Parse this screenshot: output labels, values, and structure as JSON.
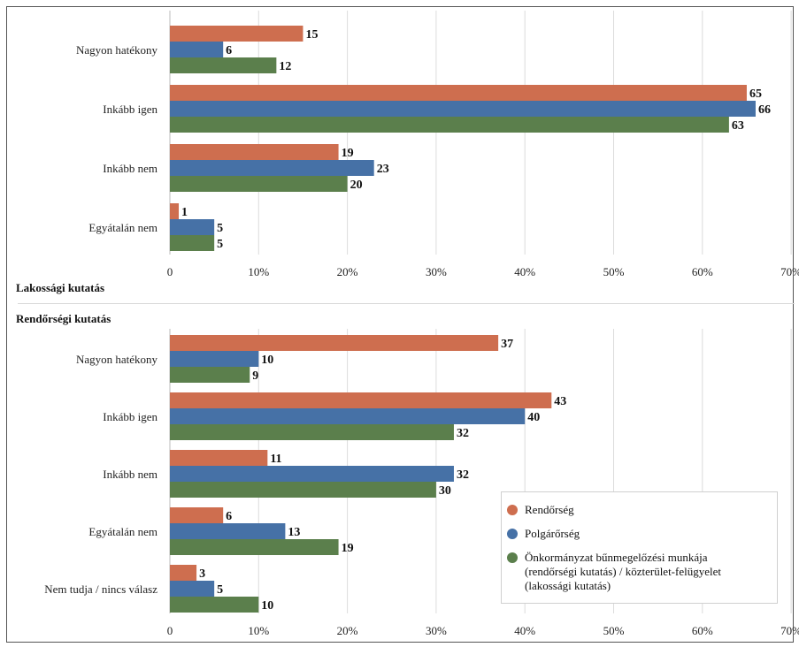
{
  "colors": {
    "rendorseg": "#CE6E4F",
    "polgarorseg": "#4671A6",
    "onkormanyzat": "#5B7F4C"
  },
  "legend": [
    {
      "label": "Rendőrség"
    },
    {
      "label": "Polgárőrség"
    },
    {
      "label": "Önkormányzat bűnmegelőzési munkája\n(rendőrségi kutatás) / közterület-felügyelet\n(lakossági kutatás)"
    }
  ],
  "chart_data": [
    {
      "type": "bar",
      "orientation": "horizontal",
      "title": "Lakossági kutatás",
      "categories": [
        "Nagyon hatékony",
        "Inkább igen",
        "Inkább nem",
        "Egyátalán nem"
      ],
      "series": [
        {
          "name": "Rendőrség",
          "values": [
            15,
            65,
            19,
            1
          ]
        },
        {
          "name": "Polgárőrség",
          "values": [
            6,
            66,
            23,
            5
          ]
        },
        {
          "name": "Önkormányzat bűnmegelőzési munkája (rendőrségi kutatás) / közterület-felügyelet (lakossági kutatás)",
          "values": [
            12,
            63,
            20,
            5
          ]
        }
      ],
      "xlim": [
        0,
        70
      ],
      "ticks": [
        "0",
        "10%",
        "20%",
        "30%",
        "40%",
        "50%",
        "60%",
        "70%"
      ],
      "grid": true,
      "legend": "none"
    },
    {
      "type": "bar",
      "orientation": "horizontal",
      "title": "Rendőrségi kutatás",
      "categories": [
        "Nagyon hatékony",
        "Inkább igen",
        "Inkább nem",
        "Egyátalán nem",
        "Nem tudja / nincs válasz"
      ],
      "series": [
        {
          "name": "Rendőrség",
          "values": [
            37,
            43,
            11,
            6,
            3
          ]
        },
        {
          "name": "Polgárőrség",
          "values": [
            10,
            40,
            32,
            13,
            5
          ]
        },
        {
          "name": "Önkormányzat bűnmegelőzési munkája (rendőrségi kutatás) / közterület-felügyelet (lakossági kutatás)",
          "values": [
            9,
            32,
            30,
            19,
            10
          ]
        }
      ],
      "xlim": [
        0,
        70
      ],
      "ticks": [
        "0",
        "10%",
        "20%",
        "30%",
        "40%",
        "50%",
        "60%",
        "70%"
      ],
      "grid": true,
      "legend": "bottom-right"
    }
  ]
}
